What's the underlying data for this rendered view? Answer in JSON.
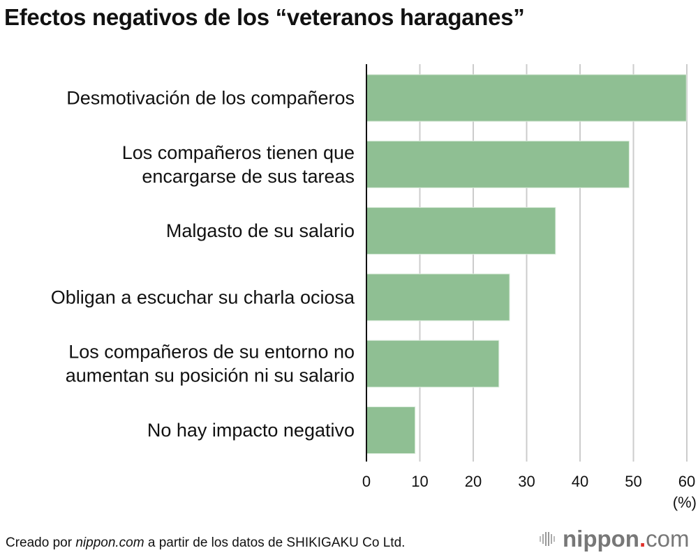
{
  "chart_data": {
    "type": "bar",
    "orientation": "horizontal",
    "title": "Efectos negativos de los “veteranos haraganes”",
    "categories": [
      [
        "Desmotivación de los compañeros"
      ],
      [
        "Los compañeros tienen que",
        "encargarse de sus tareas"
      ],
      [
        "Malgasto de su salario"
      ],
      [
        "Obligan a escuchar su charla ociosa"
      ],
      [
        "Los compañeros de su entorno no",
        "aumentan su posición ni su salario"
      ],
      [
        "No hay impacto negativo"
      ]
    ],
    "values": [
      59.9,
      49.2,
      35.4,
      26.8,
      24.8,
      9.1
    ],
    "xlabel": "(%)",
    "xlim": [
      0,
      60
    ],
    "xticks": [
      "0",
      "10",
      "20",
      "30",
      "40",
      "50",
      "60"
    ],
    "grid": true,
    "bar_color": "#8fbf93"
  },
  "footer": {
    "prefix": "Creado por ",
    "source_italic": "nippon.com",
    "suffix": " a partir de los datos de SHIKIGAKU Co Ltd."
  },
  "logo": {
    "name": "nippon",
    "dot": ".",
    "tld": "com",
    "accent": "#e0312b"
  }
}
